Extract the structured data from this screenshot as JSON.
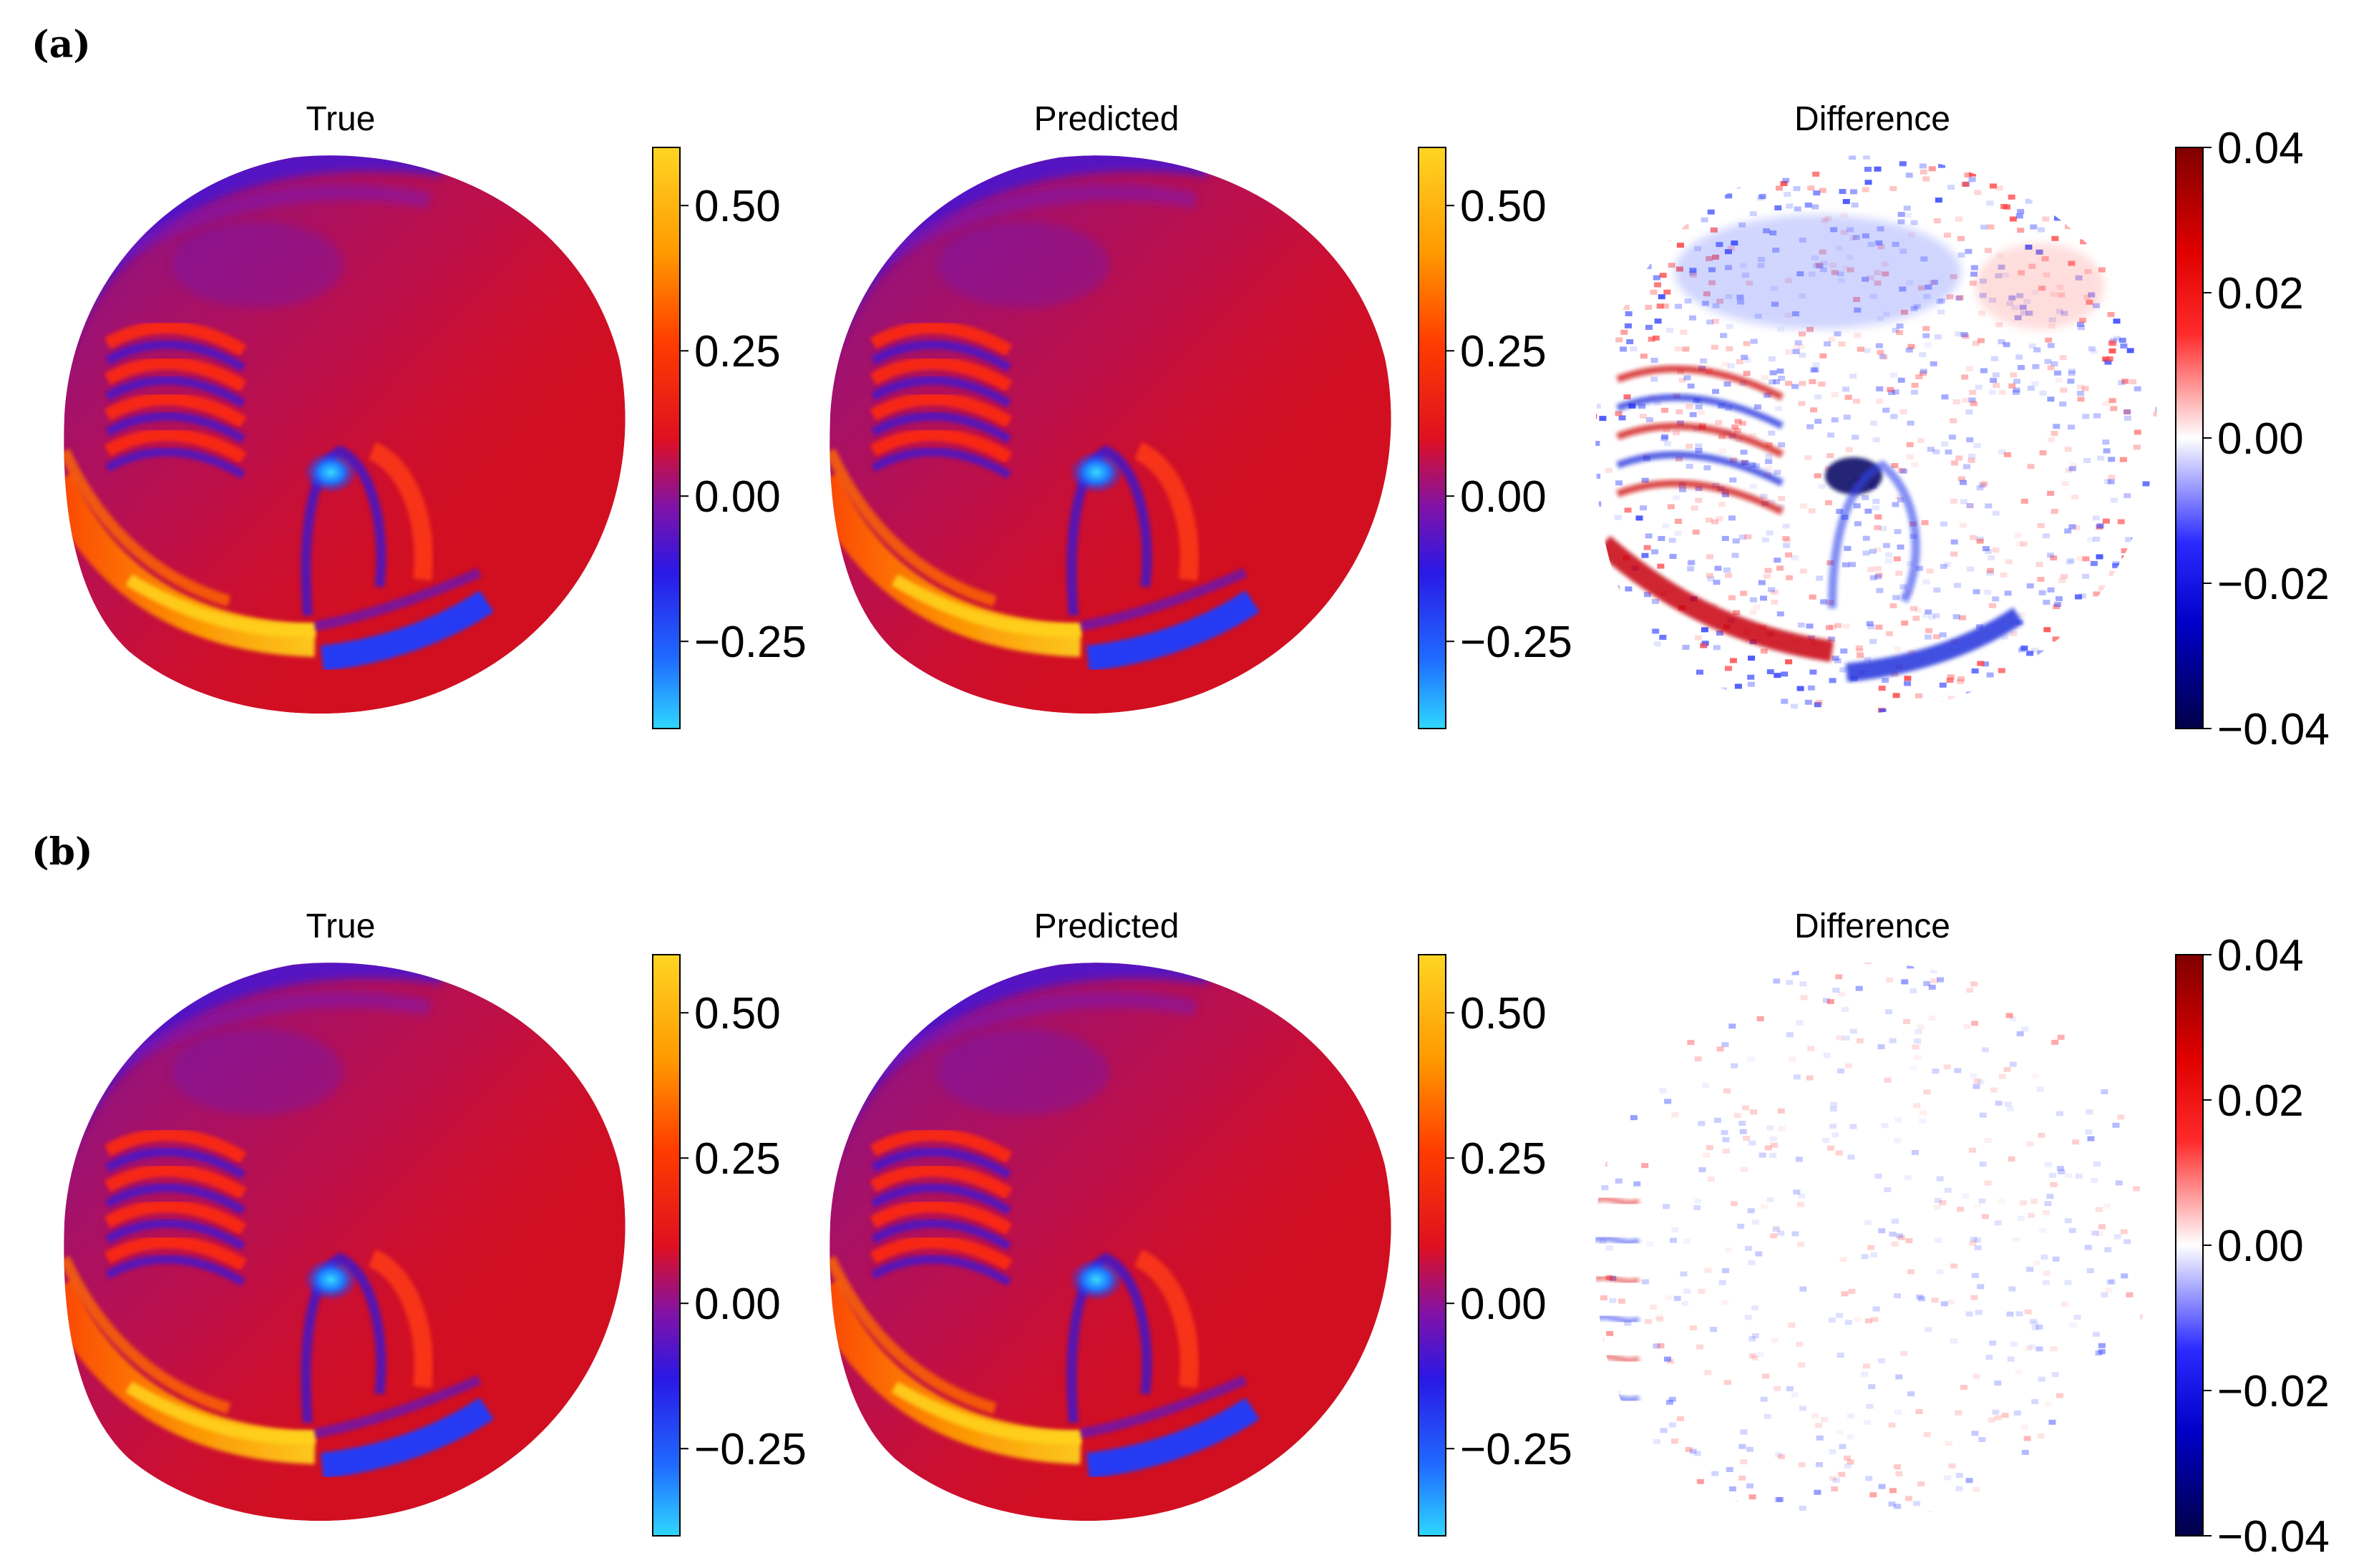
{
  "figure": {
    "panels": [
      {
        "id": "a",
        "label": "(a)"
      },
      {
        "id": "b",
        "label": "(b)"
      }
    ]
  },
  "colors": {
    "background": "#ffffff",
    "text": "#000000",
    "field_bg": "#d20f20",
    "field_top_tint": "#8a10c0",
    "deep_blue": "#1a3cff",
    "cyan_core": "#2fa9ff",
    "hot_orange": "#ff8a00",
    "hot_yellow": "#ffd21e",
    "diff_red": "#c8000a",
    "diff_blue": "#2233dd"
  },
  "chart_data": [
    {
      "type": "heatmap",
      "panel": "(a)",
      "subplots": [
        {
          "title": "True",
          "colormap": "blue-purple-red-yellow",
          "colorbar": {
            "ticks": [
              0.5,
              0.25,
              0.0,
              -0.25
            ],
            "tick_labels": [
              "0.50",
              "0.25",
              "0.00",
              "−0.25"
            ],
            "range": [
              -0.4,
              0.6
            ]
          }
        },
        {
          "title": "Predicted",
          "colormap": "blue-purple-red-yellow",
          "colorbar": {
            "ticks": [
              0.5,
              0.25,
              0.0,
              -0.25
            ],
            "tick_labels": [
              "0.50",
              "0.25",
              "0.00",
              "−0.25"
            ],
            "range": [
              -0.4,
              0.6
            ]
          }
        },
        {
          "title": "Difference",
          "colormap": "seismic",
          "colorbar": {
            "ticks": [
              0.04,
              0.02,
              0.0,
              -0.02,
              -0.04
            ],
            "tick_labels": [
              "0.04",
              "0.02",
              "0.00",
              "−0.02",
              "−0.04"
            ],
            "range": [
              -0.04,
              0.04
            ]
          },
          "difference_strength": 1.0
        }
      ]
    },
    {
      "type": "heatmap",
      "panel": "(b)",
      "subplots": [
        {
          "title": "True",
          "colormap": "blue-purple-red-yellow",
          "colorbar": {
            "ticks": [
              0.5,
              0.25,
              0.0,
              -0.25
            ],
            "tick_labels": [
              "0.50",
              "0.25",
              "0.00",
              "−0.25"
            ],
            "range": [
              -0.4,
              0.6
            ]
          }
        },
        {
          "title": "Predicted",
          "colormap": "blue-purple-red-yellow",
          "colorbar": {
            "ticks": [
              0.5,
              0.25,
              0.0,
              -0.25
            ],
            "tick_labels": [
              "0.50",
              "0.25",
              "0.00",
              "−0.25"
            ],
            "range": [
              -0.4,
              0.6
            ]
          }
        },
        {
          "title": "Difference",
          "colormap": "seismic",
          "colorbar": {
            "ticks": [
              0.04,
              0.02,
              0.0,
              -0.02,
              -0.04
            ],
            "tick_labels": [
              "0.04",
              "0.02",
              "0.00",
              "−0.02",
              "−0.04"
            ],
            "range": [
              -0.04,
              0.04
            ]
          },
          "difference_strength": 0.25
        }
      ]
    }
  ]
}
